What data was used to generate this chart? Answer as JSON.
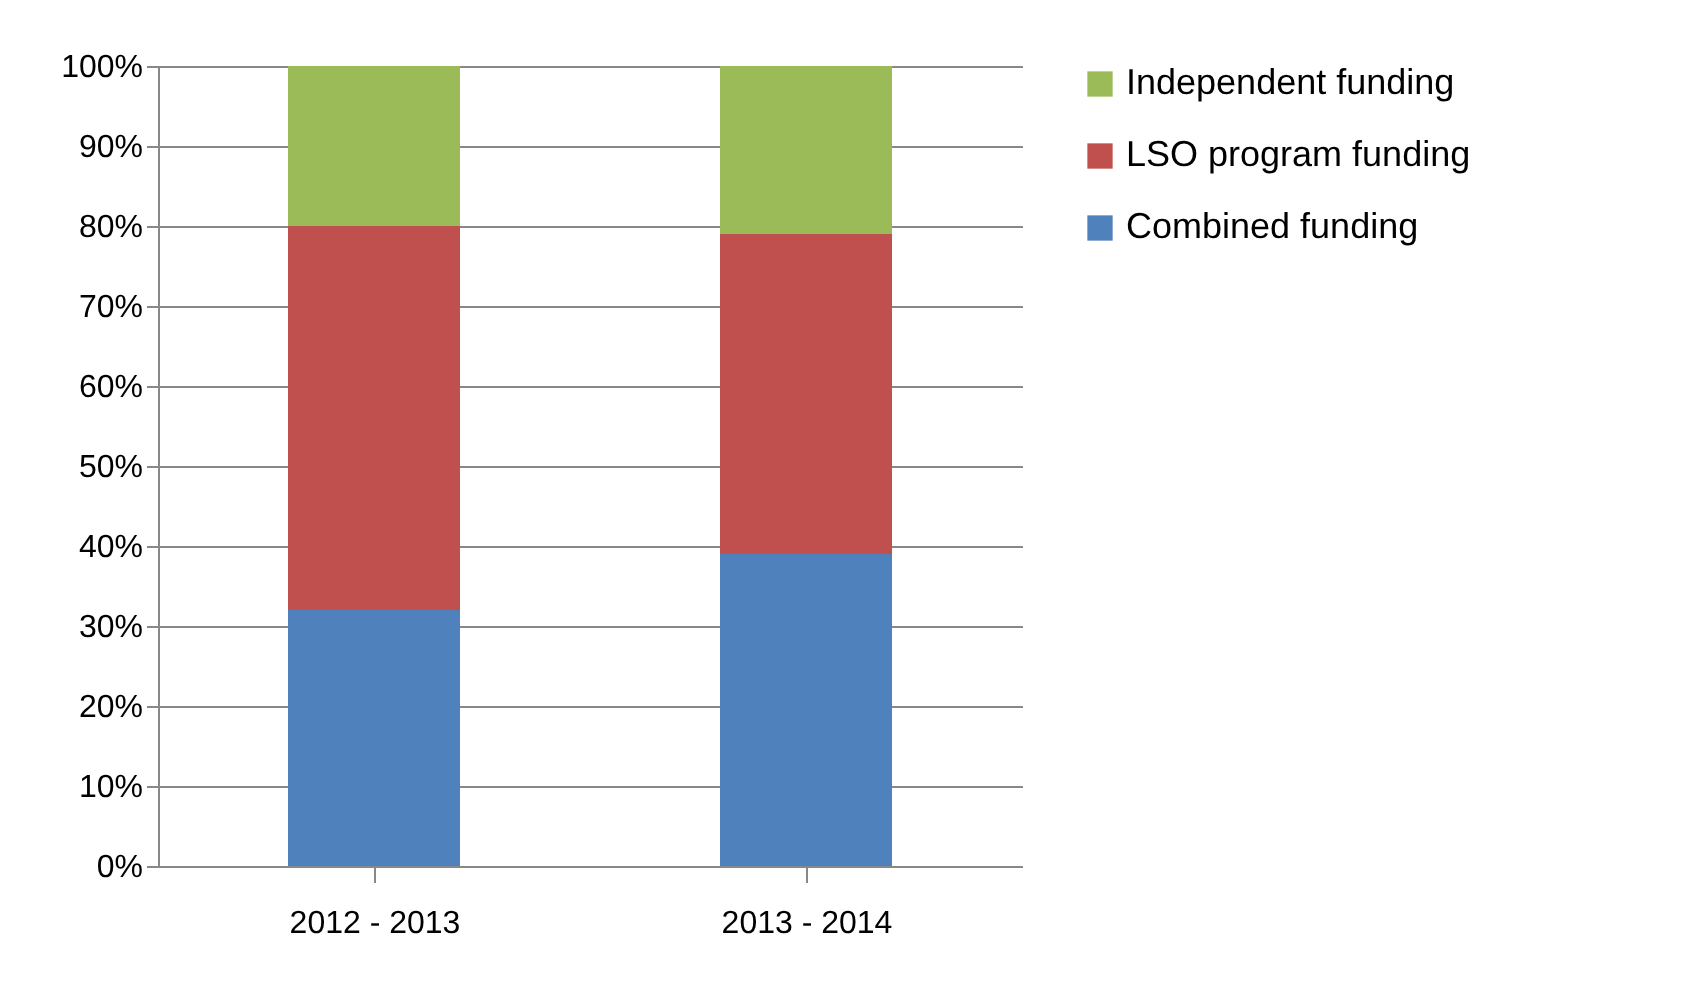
{
  "chart_data": {
    "type": "bar",
    "stacked": true,
    "categories": [
      "2012 - 2013",
      "2013 - 2014"
    ],
    "series": [
      {
        "name": "Combined funding",
        "color": "#4f81bd",
        "values": [
          32,
          39
        ]
      },
      {
        "name": "LSO program funding",
        "color": "#c0504d",
        "values": [
          48,
          40
        ]
      },
      {
        "name": "Independent funding",
        "color": "#9bbb59",
        "values": [
          20,
          21
        ]
      }
    ],
    "ylim": [
      0,
      100
    ],
    "yticks": [
      {
        "value": 0,
        "label": "0%"
      },
      {
        "value": 10,
        "label": "10%"
      },
      {
        "value": 20,
        "label": "20%"
      },
      {
        "value": 30,
        "label": "30%"
      },
      {
        "value": 40,
        "label": "40%"
      },
      {
        "value": 50,
        "label": "50%"
      },
      {
        "value": 60,
        "label": "60%"
      },
      {
        "value": 70,
        "label": "70%"
      },
      {
        "value": 80,
        "label": "80%"
      },
      {
        "value": 90,
        "label": "90%"
      },
      {
        "value": 100,
        "label": "100%"
      }
    ],
    "grid": "y",
    "legend": "right"
  }
}
